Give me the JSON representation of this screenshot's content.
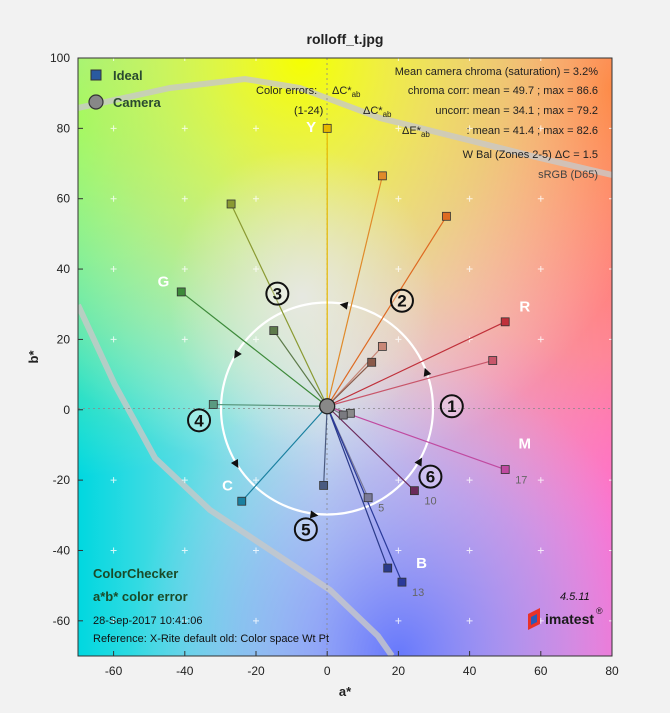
{
  "figure": {
    "title": "rolloff_t.jpg"
  },
  "legend": {
    "ideal_label": "Ideal",
    "camera_label": "Camera"
  },
  "stats": {
    "line1": "Mean camera chroma (saturation) = 3.2%",
    "line2a": "Color errors:",
    "line2b": "chroma corr:  mean = 49.7 ;  max = 86.6",
    "line3a": "(1-24)",
    "line3b": "uncorr:  mean = 34.1 ;  max = 79.2",
    "line4": ":  mean = 41.4 ;  max = 82.6",
    "line5": "W Bal (Zones 2-5) ΔC = 1.5",
    "line6": "sRGB (D65)"
  },
  "footer": {
    "line1": "ColorChecker",
    "line2": "a*b* color error",
    "line3": "28-Sep-2017 10:41:06",
    "line4": "Reference: X-Rite default old: Color space Wt Pt",
    "version": "4.5.11",
    "brand": "imatest"
  },
  "chart_data": {
    "type": "scatter",
    "title": "rolloff_t.jpg",
    "xlabel": "a*",
    "ylabel": "b*",
    "xlim": [
      -70,
      80
    ],
    "ylim": [
      -70,
      100
    ],
    "xticks": [
      -60,
      -40,
      -20,
      0,
      20,
      40,
      60,
      80
    ],
    "yticks": [
      -60,
      -40,
      -20,
      0,
      20,
      40,
      60,
      80,
      100
    ],
    "legend_position": "top-left",
    "camera_point": [
      0,
      1
    ],
    "color_labels": [
      {
        "text": "Y",
        "a": -4.5,
        "b": 79
      },
      {
        "text": "R",
        "a": 55.5,
        "b": 28
      },
      {
        "text": "G",
        "a": -46,
        "b": 35
      },
      {
        "text": "M",
        "a": 55.5,
        "b": -11
      },
      {
        "text": "C",
        "a": -28,
        "b": -23
      },
      {
        "text": "B",
        "a": 26.5,
        "b": -45
      }
    ],
    "zones": [
      {
        "label": "1",
        "a": 35,
        "b": 1
      },
      {
        "label": "2",
        "a": 21,
        "b": 31
      },
      {
        "label": "3",
        "a": -14,
        "b": 33
      },
      {
        "label": "4",
        "a": -36,
        "b": -3
      },
      {
        "label": "5",
        "a": -6,
        "b": -34
      },
      {
        "label": "6",
        "a": 29,
        "b": -19
      }
    ],
    "patches": [
      {
        "ideal": [
          0,
          80
        ],
        "color": "#e6b800"
      },
      {
        "ideal": [
          15.5,
          66.5
        ],
        "color": "#e08a2a"
      },
      {
        "ideal": [
          33.5,
          55
        ],
        "color": "#de6a22"
      },
      {
        "ideal": [
          -27,
          58.5
        ],
        "color": "#8a9a32"
      },
      {
        "ideal": [
          -41,
          33.5
        ],
        "color": "#3d8a3a"
      },
      {
        "ideal": [
          -15,
          22.5
        ],
        "color": "#5d7a4a"
      },
      {
        "ideal": [
          50,
          25
        ],
        "color": "#c0303a"
      },
      {
        "ideal": [
          46.5,
          14
        ],
        "color": "#c8566a"
      },
      {
        "ideal": [
          15.5,
          18
        ],
        "color": "#c88878"
      },
      {
        "ideal": [
          12.5,
          13.5
        ],
        "color": "#8a5a4a"
      },
      {
        "ideal": [
          -32,
          1.5
        ],
        "color": "#5a9a80"
      },
      {
        "ideal": [
          6.5,
          -1
        ],
        "color": "#8a8a8a"
      },
      {
        "ideal": [
          4.5,
          -1.5
        ],
        "color": "#7a7a80"
      },
      {
        "ideal": [
          50,
          -17
        ],
        "color": "#c04aa0",
        "num": "17"
      },
      {
        "ideal": [
          24.5,
          -23
        ],
        "color": "#6a2a5a",
        "num": "10"
      },
      {
        "ideal": [
          11.5,
          -25
        ],
        "color": "#7a7a98",
        "num": "5"
      },
      {
        "ideal": [
          -1,
          -21.5
        ],
        "color": "#4a5a80"
      },
      {
        "ideal": [
          -24,
          -26
        ],
        "color": "#1a80a0"
      },
      {
        "ideal": [
          17,
          -45
        ],
        "color": "#2a3a8a"
      },
      {
        "ideal": [
          21,
          -49
        ],
        "color": "#2a3a9a",
        "num": "13"
      }
    ]
  }
}
